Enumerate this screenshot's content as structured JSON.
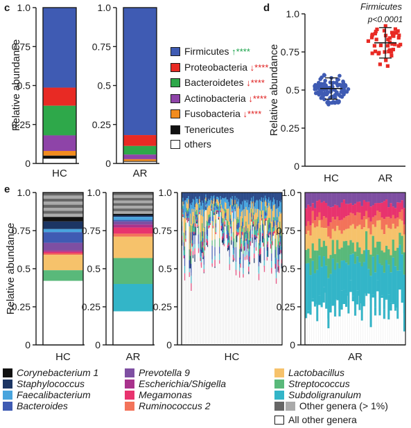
{
  "panel_letters": {
    "c": "c",
    "d": "d",
    "e": "e"
  },
  "chart_data": [
    {
      "panel": "c",
      "type": "bar",
      "stacked": true,
      "ylabel": "Relative abundance",
      "ylim": [
        0,
        1
      ],
      "yticks": [
        "0",
        "0.25",
        "0.5",
        "0.75",
        "1.0"
      ],
      "categories": [
        "HC",
        "AR"
      ],
      "series": [
        {
          "name": "Firmicutes",
          "sig": "↑****",
          "sig_dir": "up",
          "color": "#3f5bb3",
          "values": [
            0.513,
            0.818
          ]
        },
        {
          "name": "Proteobacteria",
          "sig": "↓****",
          "sig_dir": "down",
          "color": "#e82a24",
          "values": [
            0.116,
            0.07
          ]
        },
        {
          "name": "Bacteroidetes",
          "sig": "↓****",
          "sig_dir": "down",
          "color": "#2ea84a",
          "values": [
            0.19,
            0.055
          ]
        },
        {
          "name": "Actinobacteria",
          "sig": "↓****",
          "sig_dir": "down",
          "color": "#8e44a8",
          "values": [
            0.1,
            0.03
          ]
        },
        {
          "name": "Fusobacteria",
          "sig": "↓****",
          "sig_dir": "down",
          "color": "#f28c1e",
          "values": [
            0.03,
            0.012
          ]
        },
        {
          "name": "Tenericutes",
          "sig": "",
          "sig_dir": "",
          "color": "#111111",
          "values": [
            0.02,
            0.005
          ]
        },
        {
          "name": "others",
          "sig": "",
          "sig_dir": "",
          "color": "#ffffff",
          "values": [
            0.03,
            0.01
          ]
        }
      ]
    },
    {
      "panel": "d",
      "type": "scatter",
      "title": "Firmicutes",
      "ylabel": "Relative abundance",
      "ylim": [
        0,
        1
      ],
      "yticks": [
        "0",
        "0.25",
        "0.5",
        "0.75",
        "1.0"
      ],
      "categories": [
        "HC",
        "AR"
      ],
      "annotation": "p<0.0001",
      "groups": [
        {
          "name": "HC",
          "color": "#3f5bb3",
          "mean": 0.51,
          "sd": 0.07,
          "n": 110
        },
        {
          "name": "AR",
          "color": "#e82a24",
          "mean": 0.81,
          "sd": 0.1,
          "n": 45
        }
      ]
    },
    {
      "panel": "e",
      "type": "bar",
      "stacked": true,
      "ylabel": "Relative abundance",
      "ylim": [
        0,
        1
      ],
      "yticks": [
        "0",
        "0.25",
        "0.5",
        "0.75",
        "1.0"
      ],
      "categories": [
        "HC",
        "AR"
      ],
      "series": [
        {
          "name": "Corynebacterium 1",
          "color": "#111111",
          "values": [
            0.03,
            0.01
          ]
        },
        {
          "name": "Staphylococcus",
          "color": "#1c3563",
          "values": [
            0.05,
            0.01
          ]
        },
        {
          "name": "Faecalibacterium",
          "color": "#49a4dd",
          "values": [
            0.02,
            0.02
          ]
        },
        {
          "name": "Bacteroides",
          "color": "#3f5bb3",
          "values": [
            0.07,
            0.01
          ]
        },
        {
          "name": "Prevotella 9",
          "color": "#7e4fa2",
          "values": [
            0.05,
            0.02
          ]
        },
        {
          "name": "Escherichia/Shigella",
          "color": "#a8328c",
          "values": [
            0.01,
            0.02
          ]
        },
        {
          "name": "Megamonas",
          "color": "#e8336e",
          "values": [
            0.01,
            0.04
          ]
        },
        {
          "name": "Ruminococcus 2",
          "color": "#f3735a",
          "values": [
            0.01,
            0.02
          ]
        },
        {
          "name": "Lactobacillus",
          "color": "#f6c26b",
          "values": [
            0.1,
            0.14
          ]
        },
        {
          "name": "Streptococcus",
          "color": "#59b97a",
          "values": [
            0.07,
            0.17
          ]
        },
        {
          "name": "Subdoligranulum",
          "color": "#33b5c8",
          "values": [
            0.0,
            0.18
          ]
        }
      ],
      "other_genera": {
        "name": "Other genera (> 1%)",
        "colors": [
          "#666666",
          "#aaaaaa"
        ],
        "values": [
          0.16,
          0.14
        ]
      },
      "all_other_genera": {
        "name": "All other genera",
        "color": "#ffffff",
        "values": [
          0.42,
          0.22
        ]
      },
      "sample_panels": [
        {
          "label": "HC",
          "samples": 110
        },
        {
          "label": "AR",
          "samples": 45
        }
      ]
    }
  ]
}
